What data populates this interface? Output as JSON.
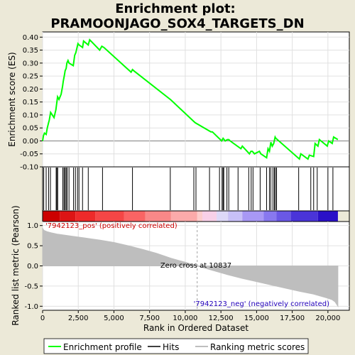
{
  "title": {
    "line1": "Enrichment plot:",
    "line2": "PRAMOONJAGO_SOX4_TARGETS_DN"
  },
  "colors": {
    "background": "#ece9d8",
    "profile": "#00ff00",
    "hits": "#000000",
    "metric_fill": "#bebebe",
    "metric_line": "#bebebe",
    "plot_bg": "#ffffff",
    "zero_cross_line": "#a0a0a0"
  },
  "chart_data": [
    {
      "type": "line",
      "name": "enrichment-profile",
      "ylabel": "Enrichment score (ES)",
      "ylim": [
        -0.1,
        0.42
      ],
      "xlim": [
        0,
        21500
      ],
      "yticks": [
        -0.1,
        -0.05,
        0.0,
        0.05,
        0.1,
        0.15,
        0.2,
        0.25,
        0.3,
        0.35,
        0.4
      ],
      "ytick_labels": [
        "-0.10",
        "-0.05",
        "0.00",
        "0.05",
        "0.10",
        "0.15",
        "0.20",
        "0.25",
        "0.30",
        "0.35",
        "0.40"
      ],
      "grid": true,
      "x": [
        0,
        60,
        130,
        250,
        330,
        420,
        470,
        560,
        800,
        930,
        1000,
        1050,
        1150,
        1300,
        1400,
        1450,
        1520,
        1580,
        1650,
        1700,
        1780,
        1850,
        2150,
        2250,
        2330,
        2480,
        2560,
        2800,
        2870,
        3200,
        3300,
        4000,
        4150,
        4300,
        6200,
        6300,
        6400,
        8950,
        9050,
        10600,
        10700,
        11800,
        11900,
        12550,
        12650,
        12800,
        12950,
        13050,
        13150,
        13900,
        14000,
        14500,
        14600,
        14700,
        14850,
        15200,
        15300,
        15700,
        15800,
        15900,
        16000,
        16100,
        16200,
        16300,
        16350,
        18000,
        18100,
        18600,
        18700,
        19000,
        19100,
        19300,
        19400,
        19950,
        20050,
        20300,
        20400,
        20700
      ],
      "y": [
        0.0,
        0.02,
        0.03,
        0.025,
        0.05,
        0.07,
        0.08,
        0.11,
        0.09,
        0.12,
        0.15,
        0.17,
        0.16,
        0.18,
        0.21,
        0.23,
        0.25,
        0.27,
        0.28,
        0.3,
        0.31,
        0.3,
        0.29,
        0.33,
        0.34,
        0.375,
        0.37,
        0.36,
        0.385,
        0.37,
        0.39,
        0.35,
        0.365,
        0.36,
        0.265,
        0.275,
        0.27,
        0.16,
        0.155,
        0.075,
        0.07,
        0.035,
        0.035,
        0.0,
        0.01,
        0.0,
        0.005,
        0.005,
        0.0,
        -0.03,
        -0.02,
        -0.05,
        -0.04,
        -0.04,
        -0.05,
        -0.04,
        -0.05,
        -0.065,
        -0.03,
        -0.04,
        -0.005,
        -0.02,
        -0.01,
        0.015,
        0.01,
        -0.07,
        -0.05,
        -0.07,
        -0.055,
        -0.06,
        -0.01,
        -0.02,
        0.005,
        -0.02,
        0.0,
        -0.01,
        0.015,
        0.005
      ]
    },
    {
      "type": "hits",
      "name": "gene-hits",
      "x": [
        80,
        250,
        420,
        550,
        950,
        1000,
        1060,
        1420,
        1500,
        1570,
        1650,
        1720,
        1850,
        2170,
        2300,
        2450,
        2550,
        2800,
        3200,
        4200,
        6300,
        8950,
        10600,
        10750,
        11700,
        12400,
        12580,
        12650,
        12700,
        12920,
        13050,
        13700,
        14450,
        14620,
        14750,
        15250,
        15700,
        15900,
        16000,
        16150,
        16250,
        16320,
        16400,
        17950,
        18800,
        19000,
        19250,
        20000,
        20350
      ]
    },
    {
      "type": "area",
      "name": "ranked-list-metric",
      "ylabel": "Ranked list metric (Pearson)",
      "xlabel": "Rank in Ordered Dataset",
      "ylim": [
        -1.1,
        1.1
      ],
      "yticks": [
        -1.0,
        -0.5,
        0.0,
        0.5,
        1.0
      ],
      "ytick_labels": [
        "-1.0",
        "-0.5",
        "0.0",
        "0.5",
        "1.0"
      ],
      "xticks": [
        0,
        2500,
        5000,
        7500,
        10000,
        12500,
        15000,
        17500,
        20000
      ],
      "xtick_labels": [
        "0",
        "2,500",
        "5,000",
        "7,500",
        "10,000",
        "12,500",
        "15,000",
        "17,500",
        "20,000"
      ],
      "grid": true,
      "x": [
        0,
        100,
        300,
        600,
        1000,
        2000,
        3000,
        4000,
        5000,
        6000,
        7000,
        8000,
        9000,
        10000,
        10837,
        12000,
        13000,
        14000,
        15000,
        16000,
        17000,
        18000,
        19000,
        19500,
        20000,
        20300,
        20500,
        20700
      ],
      "y": [
        0.93,
        0.88,
        0.85,
        0.82,
        0.79,
        0.74,
        0.69,
        0.64,
        0.58,
        0.5,
        0.41,
        0.31,
        0.19,
        0.09,
        0.0,
        -0.12,
        -0.22,
        -0.31,
        -0.39,
        -0.47,
        -0.55,
        -0.63,
        -0.7,
        -0.75,
        -0.8,
        -0.84,
        -0.89,
        -1.0
      ]
    }
  ],
  "annotations": {
    "zero_cross": "Zero cross at 10837",
    "zero_cross_x": 10837,
    "pos_label": "'7942123_pos' (positively correlated)",
    "neg_label": "'7942123_neg' (negatively correlated)"
  },
  "legend": {
    "position": "bottom",
    "items": [
      {
        "label": "Enrichment profile",
        "color": "#00ff00"
      },
      {
        "label": "Hits",
        "color": "#000000"
      },
      {
        "label": "Ranking metric scores",
        "color": "#bebebe"
      }
    ]
  },
  "heatbar": {
    "colors": [
      "#cc0000",
      "#dd1515",
      "#ee2a2a",
      "#f54646",
      "#fa6464",
      "#f98888",
      "#fbaaaa",
      "#fccccc",
      "#f8d0e8",
      "#ddd8f8",
      "#c8c0f8",
      "#a898f5",
      "#8878ef",
      "#6a58e5",
      "#4a34d8",
      "#2a10c8",
      "#2200bb"
    ],
    "stops": [
      0,
      1200,
      2300,
      3700,
      5700,
      7200,
      9000,
      10837,
      11200,
      12200,
      13000,
      14000,
      15500,
      16400,
      17400,
      19300,
      20700
    ]
  }
}
